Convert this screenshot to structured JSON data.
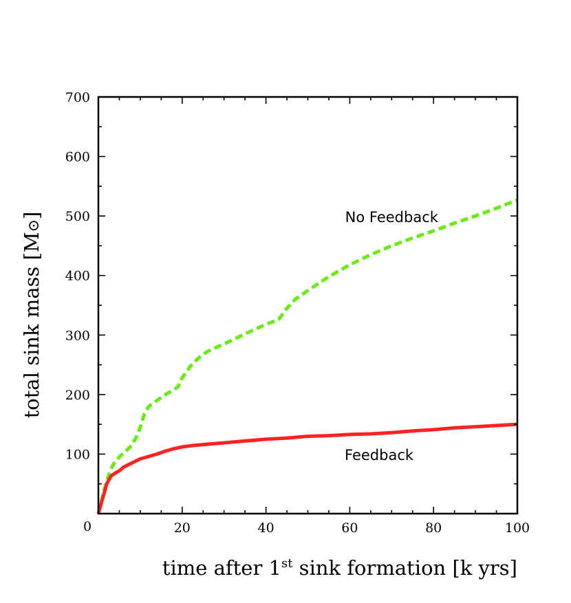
{
  "chart_data": {
    "type": "line",
    "title": "",
    "xlabel": {
      "prefix": "time after 1",
      "superscript": "st",
      "suffix": " sink formation [k yrs]"
    },
    "ylabel": {
      "prefix": "total sink mass  [M",
      "symbol": "⊙",
      "suffix": "]"
    },
    "xlim": [
      0,
      100
    ],
    "ylim": [
      0,
      700
    ],
    "x_ticks": [
      20,
      40,
      60,
      80,
      100
    ],
    "y_ticks": [
      100,
      200,
      300,
      400,
      500,
      600,
      700
    ],
    "origin_label": "0",
    "series": [
      {
        "name": "No Feedback",
        "color": "#66ee11",
        "style": "dashed",
        "x": [
          0,
          1,
          2,
          3,
          4,
          5,
          6,
          7,
          8,
          9,
          10,
          11,
          12,
          14,
          16,
          18,
          19,
          20,
          22,
          24,
          26,
          28,
          30,
          35,
          40,
          43,
          45,
          47,
          50,
          55,
          60,
          65,
          70,
          75,
          80,
          85,
          90,
          95,
          100
        ],
        "y": [
          0,
          30,
          55,
          75,
          88,
          95,
          102,
          108,
          115,
          128,
          145,
          168,
          180,
          190,
          200,
          208,
          213,
          228,
          248,
          262,
          272,
          279,
          285,
          302,
          318,
          326,
          345,
          360,
          375,
          398,
          418,
          435,
          450,
          463,
          475,
          488,
          500,
          513,
          527
        ]
      },
      {
        "name": "Feedback",
        "color": "#ff2222",
        "style": "solid",
        "x": [
          0,
          1,
          2,
          3,
          4,
          5,
          6,
          8,
          10,
          12,
          14,
          16,
          18,
          20,
          22,
          25,
          30,
          35,
          40,
          45,
          50,
          55,
          60,
          65,
          70,
          75,
          80,
          85,
          90,
          95,
          100
        ],
        "y": [
          0,
          25,
          50,
          63,
          68,
          72,
          78,
          85,
          92,
          96,
          100,
          105,
          109,
          112,
          114,
          116,
          119,
          122,
          125,
          127,
          130,
          131,
          133,
          134,
          136,
          139,
          141,
          144,
          146,
          148,
          150
        ]
      }
    ],
    "annotations": [
      {
        "text": "No Feedback",
        "x": 70,
        "y": 490
      },
      {
        "text": "Feedback",
        "x": 67,
        "y": 90
      }
    ]
  }
}
